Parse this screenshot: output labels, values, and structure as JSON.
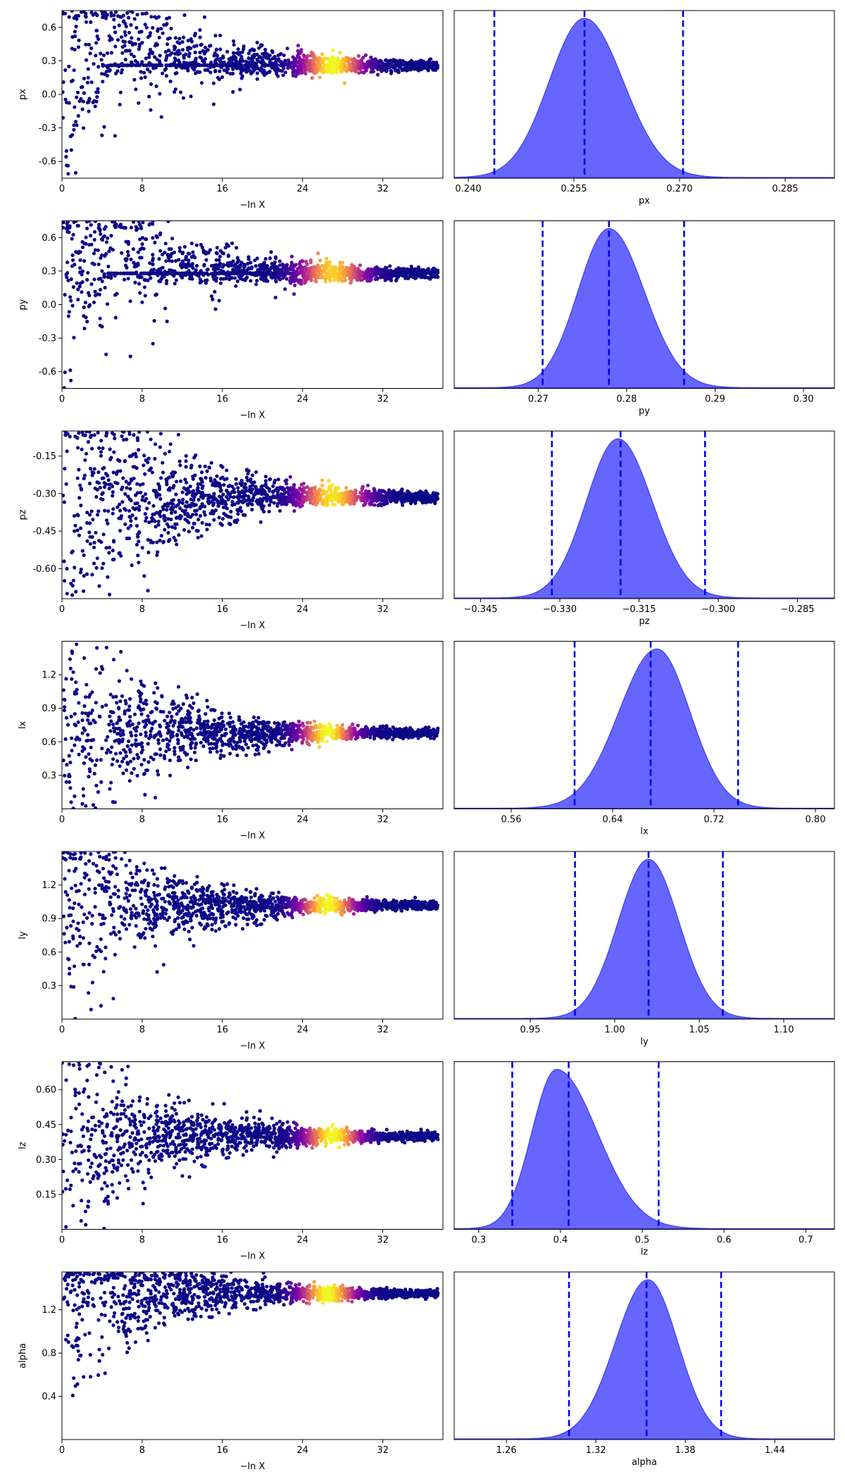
{
  "figure": {
    "xlabel_trace": "−ln X"
  },
  "colors": {
    "posterior_fill": "#6666ff",
    "posterior_edge": "#3c3cf0",
    "quantile_line": "#0000ee",
    "colormap": [
      "#0d0887",
      "#5402a3",
      "#8b0aa5",
      "#b93289",
      "#db5c68",
      "#f48849",
      "#febd2a",
      "#f0f921"
    ]
  },
  "chart_data": [
    {
      "type": "scatter",
      "param": "px",
      "ylabel": "px",
      "xlabel": "−ln X",
      "xlim": [
        0,
        38
      ],
      "ylim": [
        -0.75,
        0.75
      ],
      "xticks": [
        "0",
        "8",
        "16",
        "24",
        "32"
      ],
      "yticks": [
        "0.6",
        "0.3",
        "0.0",
        "-0.3",
        "-0.6"
      ],
      "converge_y": 0.26,
      "spread0": 1.2,
      "decay": 0.6,
      "peak_x": 27,
      "peak_w": 2.8,
      "peak_max": 1.0,
      "y0_low": -0.8,
      "y0_low_rise": 1.7
    },
    {
      "type": "area",
      "param": "px",
      "xlabel": "px",
      "xlim": [
        0.238,
        0.292
      ],
      "xticks": [
        "0.240",
        "0.255",
        "0.270",
        "0.285"
      ],
      "mode": 0.2565,
      "sigma_left": 0.005,
      "sigma_right": 0.0055,
      "quantiles": [
        0.2437,
        0.2565,
        0.2705
      ]
    },
    {
      "type": "scatter",
      "param": "py",
      "ylabel": "py",
      "xlabel": "−ln X",
      "xlim": [
        0,
        38
      ],
      "ylim": [
        -0.75,
        0.75
      ],
      "xticks": [
        "0",
        "8",
        "16",
        "24",
        "32"
      ],
      "yticks": [
        "0.6",
        "0.3",
        "0.0",
        "-0.3",
        "-0.6"
      ],
      "converge_y": 0.28,
      "spread0": 1.2,
      "decay": 0.55,
      "peak_x": 27,
      "peak_w": 3.0,
      "peak_max": 0.9,
      "y0_low": -0.8,
      "y0_low_rise": 1.6
    },
    {
      "type": "area",
      "param": "py",
      "xlabel": "py",
      "xlim": [
        0.2605,
        0.3035
      ],
      "xticks": [
        "0.27",
        "0.28",
        "0.29",
        "0.30"
      ],
      "mode": 0.278,
      "sigma_left": 0.0035,
      "sigma_right": 0.004,
      "quantiles": [
        0.2705,
        0.278,
        0.2865
      ]
    },
    {
      "type": "scatter",
      "param": "pz",
      "ylabel": "pz",
      "xlabel": "−ln X",
      "xlim": [
        0,
        38
      ],
      "ylim": [
        -0.72,
        -0.05
      ],
      "xticks": [
        "0",
        "8",
        "16",
        "24",
        "32"
      ],
      "yticks": [
        "-0.15",
        "-0.30",
        "-0.45",
        "-0.60"
      ],
      "converge_y": -0.315,
      "spread0": 0.6,
      "decay": 0.35,
      "peak_x": 27,
      "peak_w": 3.0,
      "peak_max": 0.95,
      "y0_low": -0.72,
      "y0_low_rise": 9.0
    },
    {
      "type": "area",
      "param": "pz",
      "xlabel": "pz",
      "xlim": [
        -0.35,
        -0.278
      ],
      "xticks": [
        "−0.345",
        "−0.330",
        "−0.315",
        "−0.300",
        "−0.285"
      ],
      "mode": -0.319,
      "sigma_left": 0.006,
      "sigma_right": 0.0065,
      "quantiles": [
        -0.3315,
        -0.3185,
        -0.3025
      ]
    },
    {
      "type": "scatter",
      "param": "lx",
      "ylabel": "lx",
      "xlabel": "−ln X",
      "xlim": [
        0,
        38
      ],
      "ylim": [
        0.0,
        1.5
      ],
      "xticks": [
        "0",
        "8",
        "16",
        "24",
        "32"
      ],
      "yticks": [
        "1.2",
        "0.9",
        "0.6",
        "0.3"
      ],
      "converge_y": 0.68,
      "spread0": 0.95,
      "decay": 0.28,
      "peak_x": 26.5,
      "peak_w": 2.5,
      "peak_max": 1.0,
      "y0_low": 0.0,
      "y0_low_rise": 16
    },
    {
      "type": "area",
      "param": "lx",
      "xlabel": "lx",
      "xlim": [
        0.515,
        0.815
      ],
      "xticks": [
        "0.56",
        "0.64",
        "0.72",
        "0.80"
      ],
      "mode": 0.675,
      "sigma_left": 0.03,
      "sigma_right": 0.026,
      "quantiles": [
        0.61,
        0.67,
        0.739
      ]
    },
    {
      "type": "scatter",
      "param": "ly",
      "ylabel": "ly",
      "xlabel": "−ln X",
      "xlim": [
        0,
        38
      ],
      "ylim": [
        0.0,
        1.5
      ],
      "xticks": [
        "0",
        "8",
        "16",
        "24",
        "32"
      ],
      "yticks": [
        "1.2",
        "0.9",
        "0.6",
        "0.3"
      ],
      "converge_y": 1.02,
      "spread0": 0.85,
      "decay": 0.3,
      "peak_x": 26.5,
      "peak_w": 2.6,
      "peak_max": 1.0,
      "y0_low": 0.0,
      "y0_low_rise": 16
    },
    {
      "type": "area",
      "param": "ly",
      "xlabel": "ly",
      "xlim": [
        0.905,
        1.13
      ],
      "xticks": [
        "0.95",
        "1.00",
        "1.05",
        "1.10"
      ],
      "mode": 1.02,
      "sigma_left": 0.018,
      "sigma_right": 0.018,
      "quantiles": [
        0.9765,
        1.02,
        1.064
      ]
    },
    {
      "type": "scatter",
      "param": "lz",
      "ylabel": "lz",
      "xlabel": "−ln X",
      "xlim": [
        0,
        38
      ],
      "ylim": [
        0.0,
        0.72
      ],
      "xticks": [
        "0",
        "8",
        "16",
        "24",
        "32"
      ],
      "yticks": [
        "0.60",
        "0.45",
        "0.30",
        "0.15"
      ],
      "converge_y": 0.4,
      "spread0": 0.42,
      "decay": 0.12,
      "peak_x": 27,
      "peak_w": 2.6,
      "peak_max": 1.0,
      "y0_low": 0.0,
      "y0_low_rise": 23
    },
    {
      "type": "area",
      "param": "lz",
      "xlabel": "lz",
      "xlim": [
        0.27,
        0.735
      ],
      "xticks": [
        "0.3",
        "0.4",
        "0.5",
        "0.6",
        "0.7"
      ],
      "mode": 0.395,
      "sigma_left": 0.03,
      "sigma_right": 0.05,
      "quantiles": [
        0.341,
        0.41,
        0.52
      ]
    },
    {
      "type": "scatter",
      "param": "alpha",
      "ylabel": "alpha",
      "xlabel": "−ln X",
      "xlim": [
        0,
        38
      ],
      "ylim": [
        0.0,
        1.55
      ],
      "xticks": [
        "0",
        "8",
        "16",
        "24",
        "32"
      ],
      "yticks": [
        "1.2",
        "0.8",
        "0.4"
      ],
      "converge_y": 1.35,
      "spread0": 0.8,
      "decay": 0.25,
      "peak_x": 26.5,
      "peak_w": 2.6,
      "peak_max": 1.0,
      "y0_low": 0.0,
      "y0_low_rise": 18
    },
    {
      "type": "area",
      "param": "alpha",
      "xlabel": "alpha",
      "xlim": [
        1.225,
        1.48
      ],
      "xticks": [
        "1.26",
        "1.32",
        "1.38",
        "1.44"
      ],
      "mode": 1.355,
      "sigma_left": 0.022,
      "sigma_right": 0.02,
      "quantiles": [
        1.302,
        1.354,
        1.404
      ]
    }
  ]
}
